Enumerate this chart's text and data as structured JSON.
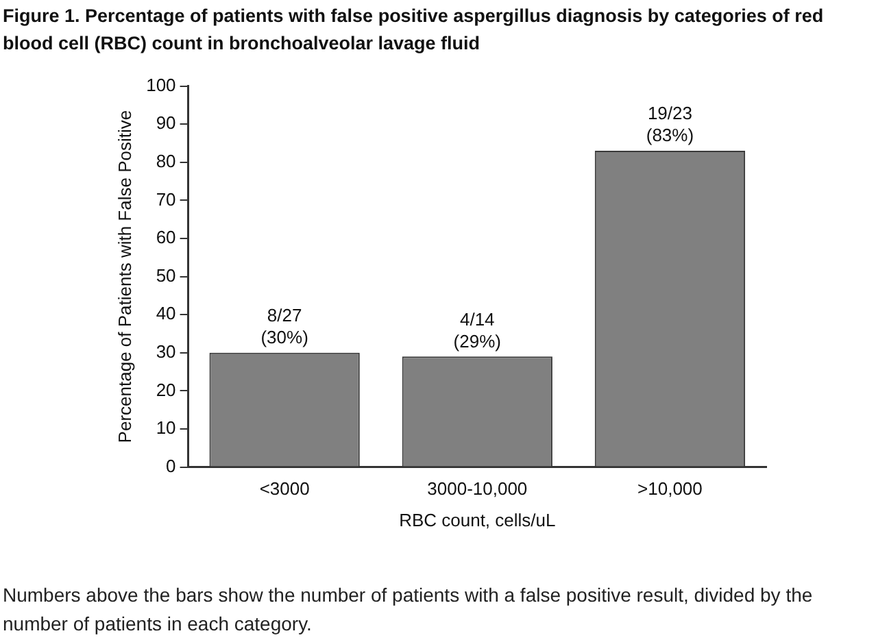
{
  "chart_data": {
    "type": "bar",
    "title": "Figure 1. Percentage of patients with false positive aspergillus diagnosis by categories of red blood cell (RBC) count in bronchoalveolar lavage fluid",
    "xlabel": "RBC count, cells/uL",
    "ylabel": "Percentage of Patients with False Positive",
    "categories": [
      "<3000",
      "3000-10,000",
      ">10,000"
    ],
    "values": [
      30,
      29,
      83
    ],
    "value_labels": [
      "8/27\n(30%)",
      "4/14\n(29%)",
      "19/23\n(83%)"
    ],
    "color": "#808080",
    "ylim": [
      0,
      100
    ],
    "yticks": [
      0,
      10,
      20,
      30,
      40,
      50,
      60,
      70,
      80,
      90,
      100
    ],
    "grid": false,
    "legend": false,
    "annotations": [
      "Numbers above the bars show the number of patients with a false positive result, divided by the number of patients in each category."
    ]
  }
}
